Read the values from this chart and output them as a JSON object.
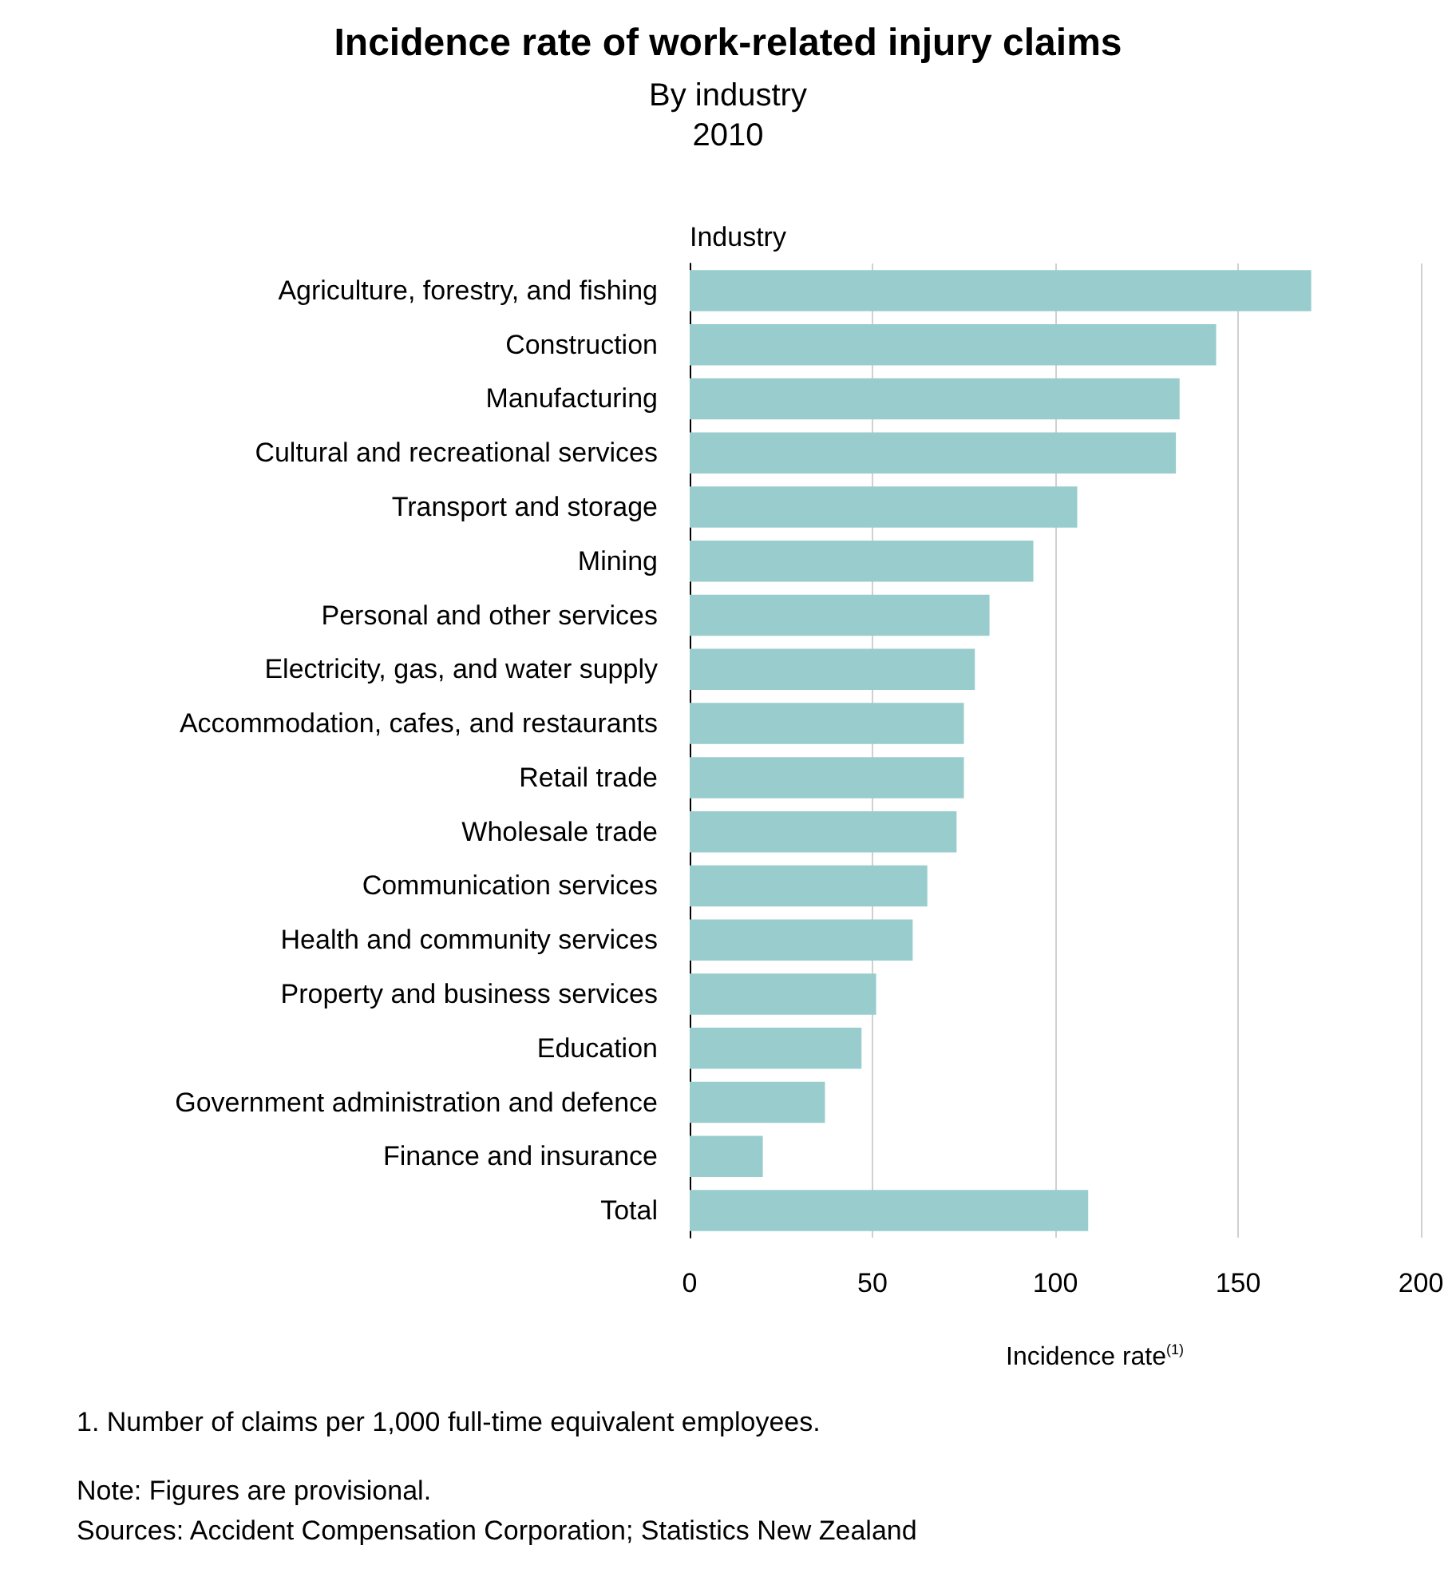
{
  "chart_data": {
    "type": "bar",
    "orientation": "horizontal",
    "title": "Incidence rate of work-related injury claims",
    "subtitle": "By industry\n2010",
    "ylabel": "Industry",
    "xlabel": "Incidence rate$^{(1)}$",
    "categories": [
      "Agriculture, forestry, and fishing",
      "Construction",
      "Manufacturing",
      "Cultural and recreational services",
      "Transport and storage",
      "Mining",
      "Personal and other services",
      "Electricity, gas, and water supply",
      "Accommodation, cafes, and restaurants",
      "Retail trade",
      "Wholesale trade",
      "Communication services",
      "Health and community services",
      "Property and business services",
      "Education",
      "Government administration and defence",
      "Finance and insurance",
      "Total"
    ],
    "values": [
      170,
      144,
      134,
      133,
      106,
      94,
      82,
      78,
      75,
      75,
      73,
      65,
      61,
      51,
      47,
      37,
      20,
      109
    ],
    "color": "#99cccc",
    "xlim": [
      0,
      200
    ],
    "xticks": [
      0,
      50,
      100,
      150,
      200
    ],
    "grid": "x",
    "annotations": [
      "1. Number of claims per 1,000 full-time equivalent employees.",
      "Note: Figures are provisional.",
      "Sources: Accident Compensation Corporation; Statistics New Zealand"
    ]
  }
}
